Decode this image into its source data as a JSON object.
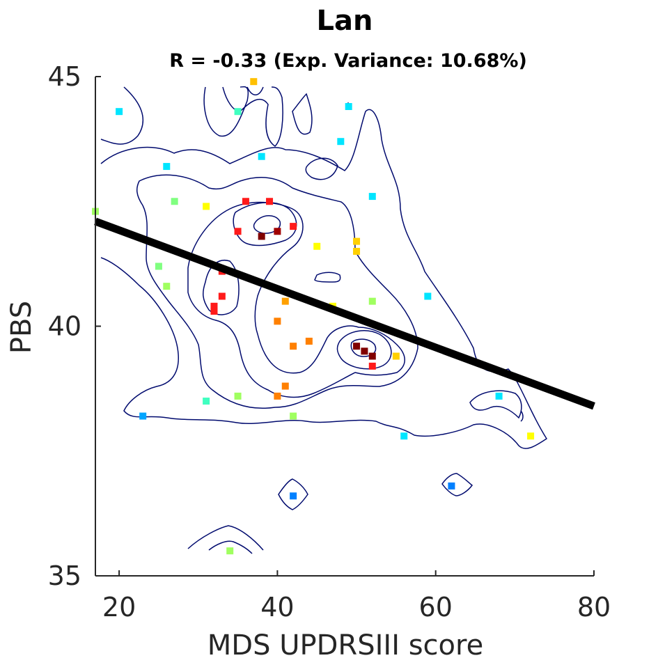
{
  "chart_data": {
    "type": "scatter",
    "title": "Lan",
    "subtitle": "R = -0.33 (Exp. Variance: 10.68%)",
    "xlabel": "MDS UPDRSIII score",
    "ylabel": "PBS",
    "xlim": [
      17,
      80
    ],
    "ylim": [
      35,
      45
    ],
    "xticks": [
      "20",
      "40",
      "60",
      "80"
    ],
    "yticks": [
      "35",
      "40",
      "45"
    ],
    "grid": false,
    "legend": "none",
    "colors": {
      "regression": "#000000",
      "contour": "#000a6e",
      "axis": "#262626"
    },
    "regression_line": {
      "x": [
        17,
        80
      ],
      "y": [
        42.1,
        38.4
      ]
    },
    "points": [
      {
        "x": 37,
        "y": 44.9,
        "color": "#ffc000"
      },
      {
        "x": 20,
        "y": 44.3,
        "color": "#00e5ff"
      },
      {
        "x": 35,
        "y": 44.3,
        "color": "#40ffc0"
      },
      {
        "x": 49,
        "y": 44.4,
        "color": "#00e5ff"
      },
      {
        "x": 48,
        "y": 43.7,
        "color": "#00e5ff"
      },
      {
        "x": 38,
        "y": 43.4,
        "color": "#00e5ff"
      },
      {
        "x": 26,
        "y": 43.2,
        "color": "#00e5ff"
      },
      {
        "x": 52,
        "y": 42.6,
        "color": "#00e5ff"
      },
      {
        "x": 17,
        "y": 42.3,
        "color": "#a0ff60"
      },
      {
        "x": 27,
        "y": 42.5,
        "color": "#80ff80"
      },
      {
        "x": 31,
        "y": 42.4,
        "color": "#ffff00"
      },
      {
        "x": 36,
        "y": 42.5,
        "color": "#ff1a1a"
      },
      {
        "x": 39,
        "y": 42.5,
        "color": "#ff1a1a"
      },
      {
        "x": 35,
        "y": 41.9,
        "color": "#ff1a1a"
      },
      {
        "x": 40,
        "y": 41.9,
        "color": "#a00000"
      },
      {
        "x": 38,
        "y": 41.8,
        "color": "#800000"
      },
      {
        "x": 42,
        "y": 42.0,
        "color": "#ff1a1a"
      },
      {
        "x": 45,
        "y": 41.6,
        "color": "#ffff00"
      },
      {
        "x": 50,
        "y": 41.7,
        "color": "#ffd000"
      },
      {
        "x": 50,
        "y": 41.5,
        "color": "#ffd000"
      },
      {
        "x": 25,
        "y": 41.2,
        "color": "#80ff80"
      },
      {
        "x": 33,
        "y": 41.1,
        "color": "#ff1a1a"
      },
      {
        "x": 26,
        "y": 40.8,
        "color": "#a0ff60"
      },
      {
        "x": 33,
        "y": 40.6,
        "color": "#ff1a1a"
      },
      {
        "x": 32,
        "y": 40.4,
        "color": "#ff1a1a"
      },
      {
        "x": 32,
        "y": 40.3,
        "color": "#ff1a1a"
      },
      {
        "x": 41,
        "y": 40.5,
        "color": "#ffa000"
      },
      {
        "x": 47,
        "y": 40.4,
        "color": "#ffff00"
      },
      {
        "x": 52,
        "y": 40.5,
        "color": "#a0ff60"
      },
      {
        "x": 59,
        "y": 40.6,
        "color": "#00e5ff"
      },
      {
        "x": 40,
        "y": 40.1,
        "color": "#ff8000"
      },
      {
        "x": 44,
        "y": 39.7,
        "color": "#ff8000"
      },
      {
        "x": 42,
        "y": 39.6,
        "color": "#ff8000"
      },
      {
        "x": 50,
        "y": 39.6,
        "color": "#800000"
      },
      {
        "x": 51,
        "y": 39.5,
        "color": "#800000"
      },
      {
        "x": 52,
        "y": 39.4,
        "color": "#800000"
      },
      {
        "x": 55,
        "y": 39.4,
        "color": "#ffd000"
      },
      {
        "x": 52,
        "y": 39.2,
        "color": "#ff1a1a"
      },
      {
        "x": 41,
        "y": 38.8,
        "color": "#ff8000"
      },
      {
        "x": 40,
        "y": 38.6,
        "color": "#ff8000"
      },
      {
        "x": 35,
        "y": 38.6,
        "color": "#a0ff60"
      },
      {
        "x": 31,
        "y": 38.5,
        "color": "#40ffc0"
      },
      {
        "x": 68,
        "y": 38.6,
        "color": "#00e5ff"
      },
      {
        "x": 23,
        "y": 38.2,
        "color": "#00a5ff"
      },
      {
        "x": 42,
        "y": 38.2,
        "color": "#a0ff60"
      },
      {
        "x": 56,
        "y": 37.8,
        "color": "#00e5ff"
      },
      {
        "x": 72,
        "y": 37.8,
        "color": "#ffff00"
      },
      {
        "x": 62,
        "y": 36.8,
        "color": "#0080ff"
      },
      {
        "x": 42,
        "y": 36.6,
        "color": "#0080ff"
      },
      {
        "x": 34,
        "y": 35.5,
        "color": "#a0ff60"
      }
    ]
  }
}
